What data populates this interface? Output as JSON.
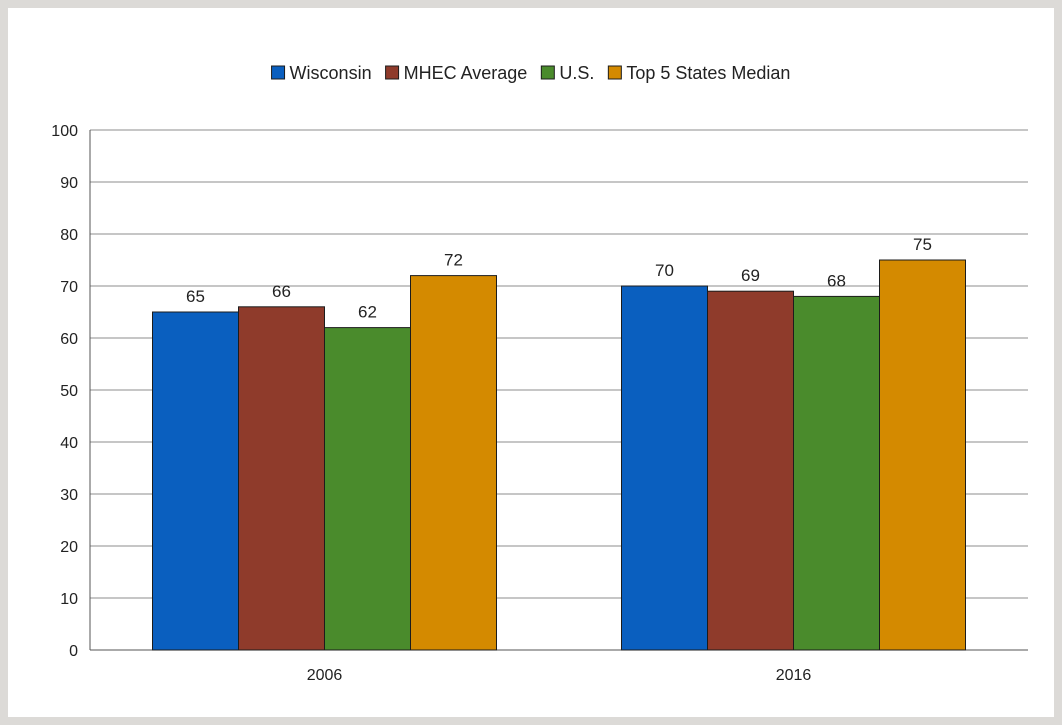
{
  "chart_data": {
    "type": "bar",
    "title": "",
    "xlabel": "",
    "ylabel": "",
    "categories": [
      "2006",
      "2016"
    ],
    "ylim": [
      0,
      100
    ],
    "yticks": [
      0,
      10,
      20,
      30,
      40,
      50,
      60,
      70,
      80,
      90,
      100
    ],
    "grid": true,
    "legend_position": "top",
    "series": [
      {
        "name": "Wisconsin",
        "color": "#0a5fbf",
        "values": [
          65,
          70
        ],
        "labels": [
          "65",
          "70"
        ]
      },
      {
        "name": "MHEC Average",
        "color": "#8f3b2b",
        "values": [
          66,
          69
        ],
        "labels": [
          "66",
          "69"
        ]
      },
      {
        "name": "U.S.",
        "color": "#4a8b2c",
        "values": [
          62,
          68
        ],
        "labels": [
          "62",
          "68"
        ]
      },
      {
        "name": "Top 5 States Median",
        "color": "#d48a00",
        "values": [
          72,
          75
        ],
        "labels": [
          "72",
          "75"
        ]
      }
    ]
  }
}
